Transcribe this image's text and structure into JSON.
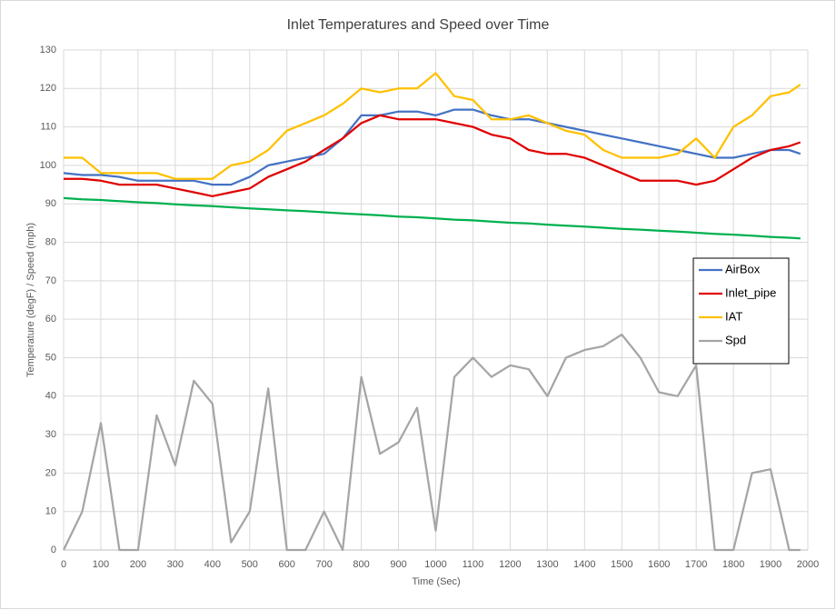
{
  "chart_data": {
    "type": "line",
    "title": "Inlet Temperatures and Speed over Time",
    "x_label": "Time (Sec)",
    "y_label": "Temperature (degF) / Speed (mph)",
    "x": [
      0,
      50,
      100,
      150,
      200,
      250,
      300,
      350,
      400,
      450,
      500,
      550,
      600,
      650,
      700,
      750,
      800,
      850,
      900,
      950,
      1000,
      1050,
      1100,
      1150,
      1200,
      1250,
      1300,
      1350,
      1400,
      1450,
      1500,
      1550,
      1600,
      1650,
      1700,
      1750,
      1800,
      1850,
      1900,
      1950,
      1980
    ],
    "series": [
      {
        "name": "AirBox",
        "color": "#4472c4",
        "values": [
          98,
          97.5,
          97.5,
          97,
          96,
          96,
          96,
          96,
          95,
          95,
          97,
          100,
          101,
          102,
          103,
          107,
          113,
          113,
          114,
          114,
          113,
          114.5,
          114.5,
          113,
          112,
          112,
          111,
          110,
          109,
          108,
          107,
          106,
          105,
          104,
          103,
          102,
          102,
          103,
          104,
          104,
          103
        ]
      },
      {
        "name": "Inlet_pipe",
        "color": "#e00000",
        "values": [
          96.5,
          96.5,
          96,
          95,
          95,
          95,
          94,
          93,
          92,
          93,
          94,
          97,
          99,
          101,
          104,
          107,
          111,
          113,
          112,
          112,
          112,
          111,
          110,
          108,
          107,
          104,
          103,
          103,
          102,
          100,
          98,
          96,
          96,
          96,
          95,
          96,
          99,
          102,
          104,
          105,
          106
        ]
      },
      {
        "name": "IAT",
        "color": "#ffc000",
        "values": [
          102,
          102,
          98,
          98,
          98,
          98,
          96.5,
          96.5,
          96.5,
          100,
          101,
          104,
          109,
          111,
          113,
          116,
          120,
          119,
          120,
          120,
          124,
          118,
          117,
          112,
          112,
          113,
          111,
          109,
          108,
          104,
          102,
          102,
          102,
          103,
          107,
          102,
          110,
          113,
          118,
          119,
          121
        ]
      },
      {
        "color": "#00b050",
        "values": [
          91.5,
          91.2,
          91.0,
          90.7,
          90.4,
          90.2,
          89.9,
          89.6,
          89.4,
          89.1,
          88.8,
          88.6,
          88.3,
          88.1,
          87.8,
          87.5,
          87.3,
          87.0,
          86.7,
          86.5,
          86.2,
          85.9,
          85.7,
          85.4,
          85.1,
          84.9,
          84.6,
          84.3,
          84.1,
          83.8,
          83.5,
          83.3,
          83.0,
          82.8,
          82.5,
          82.2,
          82.0,
          81.7,
          81.4,
          81.2,
          81.0
        ]
      },
      {
        "name": "Spd",
        "color": "#a5a5a5",
        "values": [
          0,
          10,
          33,
          0,
          0,
          35,
          22,
          44,
          38,
          2,
          10,
          42,
          0,
          0,
          10,
          0,
          45,
          25,
          28,
          37,
          5,
          45,
          50,
          45,
          48,
          47,
          40,
          50,
          52,
          53,
          56,
          50,
          41,
          40,
          48,
          0,
          0,
          20,
          21,
          0,
          0
        ]
      }
    ],
    "xlim": [
      0,
      2000
    ],
    "ylim": [
      0,
      130
    ],
    "xticks": [
      0,
      100,
      200,
      300,
      400,
      500,
      600,
      700,
      800,
      900,
      1000,
      1100,
      1200,
      1300,
      1400,
      1500,
      1600,
      1700,
      1800,
      1900,
      2000
    ],
    "yticks": [
      0,
      10,
      20,
      30,
      40,
      50,
      60,
      70,
      80,
      90,
      100,
      110,
      120,
      130
    ],
    "grid": true
  }
}
